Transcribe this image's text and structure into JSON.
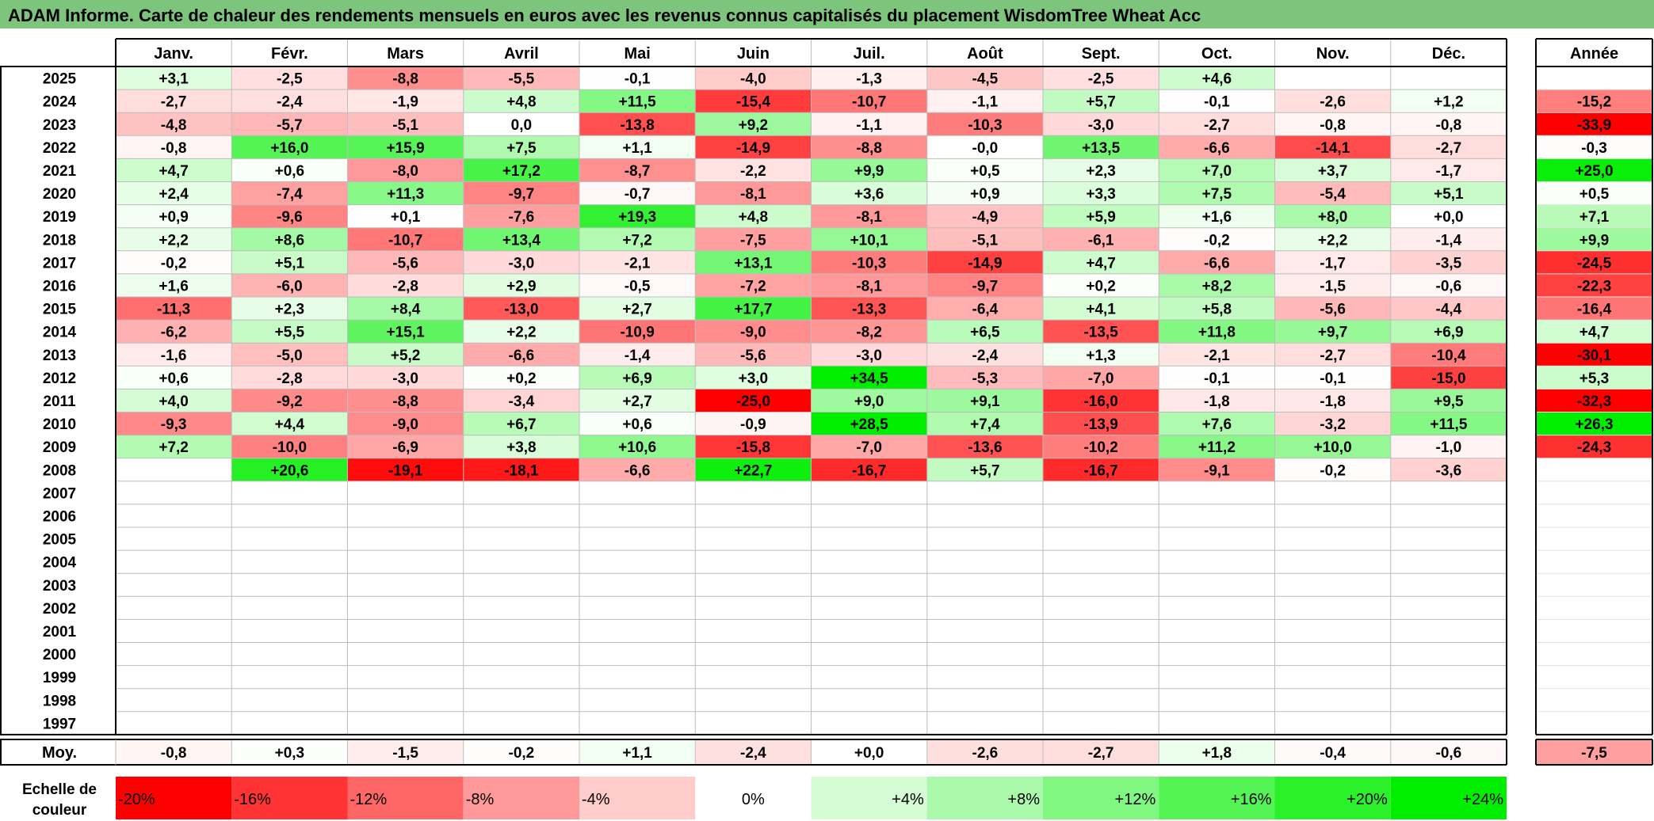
{
  "chart_data": {
    "type": "heatmap",
    "title": "ADAM Informe. Carte de chaleur des rendements mensuels en euros avec les revenus connus capitalisés du placement WisdomTree Wheat Acc",
    "columns": [
      "Janv.",
      "Févr.",
      "Mars",
      "Avril",
      "Mai",
      "Juin",
      "Juil.",
      "Août",
      "Sept.",
      "Oct.",
      "Nov.",
      "Déc."
    ],
    "year_label": "Année",
    "average_label": "Moy.",
    "rows": [
      {
        "year": "2025",
        "values": [
          "+3,1",
          "-2,5",
          "-8,8",
          "-5,5",
          "-0,1",
          "-4,0",
          "-1,3",
          "-4,5",
          "-2,5",
          "+4,6",
          null,
          null
        ],
        "annual": null
      },
      {
        "year": "2024",
        "values": [
          "-2,7",
          "-2,4",
          "-1,9",
          "+4,8",
          "+11,5",
          "-15,4",
          "-10,7",
          "-1,1",
          "+5,7",
          "-0,1",
          "-2,6",
          "+1,2"
        ],
        "annual": "-15,2"
      },
      {
        "year": "2023",
        "values": [
          "-4,8",
          "-5,7",
          "-5,1",
          "0,0",
          "-13,8",
          "+9,2",
          "-1,1",
          "-10,3",
          "-3,0",
          "-2,7",
          "-0,8",
          "-0,8"
        ],
        "annual": "-33,9"
      },
      {
        "year": "2022",
        "values": [
          "-0,8",
          "+16,0",
          "+15,9",
          "+7,5",
          "+1,1",
          "-14,9",
          "-8,8",
          "-0,0",
          "+13,5",
          "-6,6",
          "-14,1",
          "-2,7"
        ],
        "annual": "-0,3"
      },
      {
        "year": "2021",
        "values": [
          "+4,7",
          "+0,6",
          "-8,0",
          "+17,2",
          "-8,7",
          "-2,2",
          "+9,9",
          "+0,5",
          "+2,3",
          "+7,0",
          "+3,7",
          "-1,7"
        ],
        "annual": "+25,0"
      },
      {
        "year": "2020",
        "values": [
          "+2,4",
          "-7,4",
          "+11,3",
          "-9,7",
          "-0,7",
          "-8,1",
          "+3,6",
          "+0,9",
          "+3,3",
          "+7,5",
          "-5,4",
          "+5,1"
        ],
        "annual": "+0,5"
      },
      {
        "year": "2019",
        "values": [
          "+0,9",
          "-9,6",
          "+0,1",
          "-7,6",
          "+19,3",
          "+4,8",
          "-8,1",
          "-4,9",
          "+5,9",
          "+1,6",
          "+8,0",
          "+0,0"
        ],
        "annual": "+7,1"
      },
      {
        "year": "2018",
        "values": [
          "+2,2",
          "+8,6",
          "-10,7",
          "+13,4",
          "+7,2",
          "-7,5",
          "+10,1",
          "-5,1",
          "-6,1",
          "-0,2",
          "+2,2",
          "-1,4"
        ],
        "annual": "+9,9"
      },
      {
        "year": "2017",
        "values": [
          "-0,2",
          "+5,1",
          "-5,6",
          "-3,0",
          "-2,1",
          "+13,1",
          "-10,3",
          "-14,9",
          "+4,7",
          "-6,6",
          "-1,7",
          "-3,5"
        ],
        "annual": "-24,5"
      },
      {
        "year": "2016",
        "values": [
          "+1,6",
          "-6,0",
          "-2,8",
          "+2,9",
          "-0,5",
          "-7,2",
          "-8,1",
          "-9,7",
          "+0,2",
          "+8,2",
          "-1,5",
          "-0,6"
        ],
        "annual": "-22,3"
      },
      {
        "year": "2015",
        "values": [
          "-11,3",
          "+2,3",
          "+8,4",
          "-13,0",
          "+2,7",
          "+17,7",
          "-13,3",
          "-6,4",
          "+4,1",
          "+5,8",
          "-5,6",
          "-4,4"
        ],
        "annual": "-16,4"
      },
      {
        "year": "2014",
        "values": [
          "-6,2",
          "+5,5",
          "+15,1",
          "+2,2",
          "-10,9",
          "-9,0",
          "-8,2",
          "+6,5",
          "-13,5",
          "+11,8",
          "+9,7",
          "+6,9"
        ],
        "annual": "+4,7"
      },
      {
        "year": "2013",
        "values": [
          "-1,6",
          "-5,0",
          "+5,2",
          "-6,6",
          "-1,4",
          "-5,6",
          "-3,0",
          "-2,4",
          "+1,3",
          "-2,1",
          "-2,7",
          "-10,4"
        ],
        "annual": "-30,1"
      },
      {
        "year": "2012",
        "values": [
          "+0,6",
          "-2,8",
          "-3,0",
          "+0,2",
          "+6,9",
          "+3,0",
          "+34,5",
          "-5,3",
          "-7,0",
          "-0,1",
          "-0,1",
          "-15,0"
        ],
        "annual": "+5,3"
      },
      {
        "year": "2011",
        "values": [
          "+4,0",
          "-9,2",
          "-8,8",
          "-3,4",
          "+2,7",
          "-25,0",
          "+9,0",
          "+9,1",
          "-16,0",
          "-1,8",
          "-1,8",
          "+9,5"
        ],
        "annual": "-32,3"
      },
      {
        "year": "2010",
        "values": [
          "-9,3",
          "+4,4",
          "-9,0",
          "+6,7",
          "+0,6",
          "-0,9",
          "+28,5",
          "+7,4",
          "-13,9",
          "+7,6",
          "-3,2",
          "+11,5"
        ],
        "annual": "+26,3"
      },
      {
        "year": "2009",
        "values": [
          "+7,2",
          "-10,0",
          "-6,9",
          "+3,8",
          "+10,6",
          "-15,8",
          "-7,0",
          "-13,6",
          "-10,2",
          "+11,2",
          "+10,0",
          "-1,0"
        ],
        "annual": "-24,3"
      },
      {
        "year": "2008",
        "values": [
          null,
          "+20,6",
          "-19,1",
          "-18,1",
          "-6,6",
          "+22,7",
          "-16,7",
          "+5,7",
          "-16,7",
          "-9,1",
          "-0,2",
          "-3,6"
        ],
        "annual": null
      },
      {
        "year": "2007",
        "values": [
          null,
          null,
          null,
          null,
          null,
          null,
          null,
          null,
          null,
          null,
          null,
          null
        ],
        "annual": null
      },
      {
        "year": "2006",
        "values": [
          null,
          null,
          null,
          null,
          null,
          null,
          null,
          null,
          null,
          null,
          null,
          null
        ],
        "annual": null
      },
      {
        "year": "2005",
        "values": [
          null,
          null,
          null,
          null,
          null,
          null,
          null,
          null,
          null,
          null,
          null,
          null
        ],
        "annual": null
      },
      {
        "year": "2004",
        "values": [
          null,
          null,
          null,
          null,
          null,
          null,
          null,
          null,
          null,
          null,
          null,
          null
        ],
        "annual": null
      },
      {
        "year": "2003",
        "values": [
          null,
          null,
          null,
          null,
          null,
          null,
          null,
          null,
          null,
          null,
          null,
          null
        ],
        "annual": null
      },
      {
        "year": "2002",
        "values": [
          null,
          null,
          null,
          null,
          null,
          null,
          null,
          null,
          null,
          null,
          null,
          null
        ],
        "annual": null
      },
      {
        "year": "2001",
        "values": [
          null,
          null,
          null,
          null,
          null,
          null,
          null,
          null,
          null,
          null,
          null,
          null
        ],
        "annual": null
      },
      {
        "year": "2000",
        "values": [
          null,
          null,
          null,
          null,
          null,
          null,
          null,
          null,
          null,
          null,
          null,
          null
        ],
        "annual": null
      },
      {
        "year": "1999",
        "values": [
          null,
          null,
          null,
          null,
          null,
          null,
          null,
          null,
          null,
          null,
          null,
          null
        ],
        "annual": null
      },
      {
        "year": "1998",
        "values": [
          null,
          null,
          null,
          null,
          null,
          null,
          null,
          null,
          null,
          null,
          null,
          null
        ],
        "annual": null
      },
      {
        "year": "1997",
        "values": [
          null,
          null,
          null,
          null,
          null,
          null,
          null,
          null,
          null,
          null,
          null,
          null
        ],
        "annual": null
      }
    ],
    "averages": [
      "-0,8",
      "+0,3",
      "-1,5",
      "-0,2",
      "+1,1",
      "-2,4",
      "+0,0",
      "-2,6",
      "-2,7",
      "+1,8",
      "-0,4",
      "-0,6"
    ],
    "average_annual": "-7,5",
    "color_scale": {
      "label_line1": "Echelle de",
      "label_line2": "couleur",
      "stops": [
        {
          "label": "-20%",
          "value": -20
        },
        {
          "label": "-16%",
          "value": -16
        },
        {
          "label": "-12%",
          "value": -12
        },
        {
          "label": "-8%",
          "value": -8
        },
        {
          "label": "-4%",
          "value": -4
        },
        {
          "label": "0%",
          "value": 0
        },
        {
          "label": "+4%",
          "value": 4
        },
        {
          "label": "+8%",
          "value": 8
        },
        {
          "label": "+12%",
          "value": 12
        },
        {
          "label": "+16%",
          "value": 16
        },
        {
          "label": "+20%",
          "value": 20
        },
        {
          "label": "+24%",
          "value": 24
        }
      ]
    },
    "colors": {
      "title_bar": "#7dc47d",
      "negative_max": "#ff0000",
      "positive_max": "#00ee00",
      "neutral": "#ffffff"
    }
  }
}
